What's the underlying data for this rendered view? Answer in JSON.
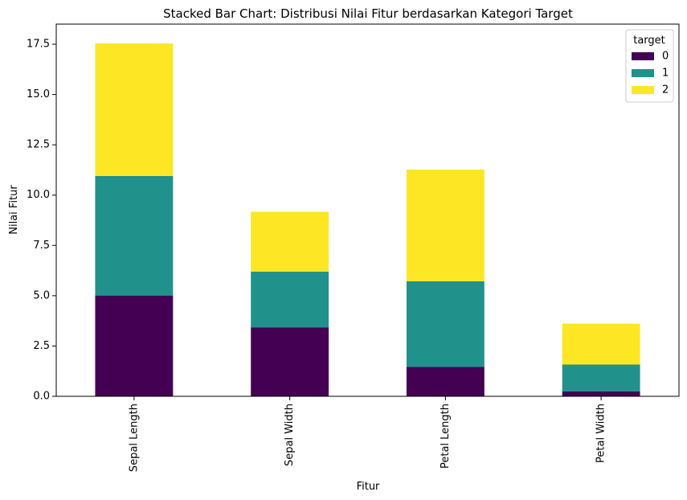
{
  "chart_data": {
    "type": "bar",
    "stacked": true,
    "title": "Stacked Bar Chart: Distribusi Nilai Fitur berdasarkan Kategori Target",
    "xlabel": "Fitur",
    "ylabel": "Nilai Fitur",
    "categories": [
      "Sepal Length",
      "Sepal Width",
      "Petal Length",
      "Petal Width"
    ],
    "series": [
      {
        "name": "0",
        "color": "#440154",
        "values": [
          5.01,
          3.43,
          1.46,
          0.25
        ]
      },
      {
        "name": "1",
        "color": "#21918c",
        "values": [
          5.94,
          2.77,
          4.26,
          1.33
        ]
      },
      {
        "name": "2",
        "color": "#fde725",
        "values": [
          6.59,
          2.97,
          5.55,
          2.03
        ]
      }
    ],
    "ylim": [
      0,
      18.5
    ],
    "yticks": [
      "0.0",
      "2.5",
      "5.0",
      "7.5",
      "10.0",
      "12.5",
      "15.0",
      "17.5"
    ],
    "legend": {
      "title": "target",
      "position": "top-right"
    },
    "grid": false
  }
}
